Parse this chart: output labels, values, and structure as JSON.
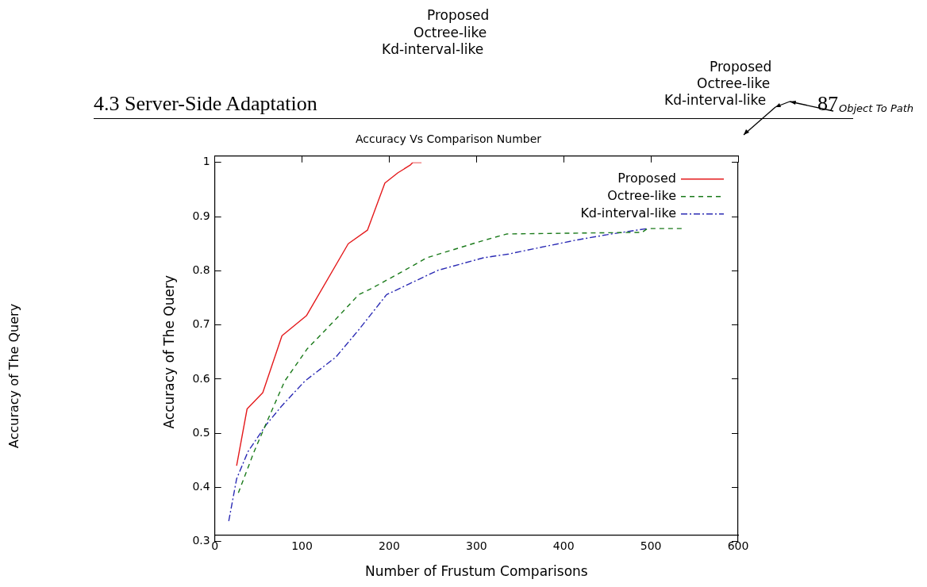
{
  "chart_data": {
    "type": "line",
    "title": "Accuracy Vs Comparison Number",
    "xlabel": "Number of Frustum Comparisons",
    "ylabel": "Accuracy of The Query",
    "xlim": [
      0,
      600
    ],
    "xticks": [
      0,
      100,
      200,
      300,
      400,
      500,
      600
    ],
    "ylim": [
      0.3,
      1
    ],
    "yticks": [
      0.3,
      0.4,
      0.5,
      0.6,
      0.7,
      0.8,
      0.9,
      1
    ],
    "grid": false,
    "legend": "top right",
    "marker": "none",
    "series": [
      {
        "name": "Proposed",
        "color": "#e41a1c",
        "line_style": "solid",
        "x": [
          25,
          37,
          55,
          77,
          105,
          153,
          175,
          195,
          210,
          224,
          227,
          237
        ],
        "values": [
          0.44,
          0.545,
          0.575,
          0.68,
          0.717,
          0.85,
          0.875,
          0.962,
          0.981,
          0.995,
          1,
          1
        ]
      },
      {
        "name": "Octree-like",
        "color": "#1a7a1a",
        "line_style": "dashed",
        "x": [
          27,
          45,
          61,
          80,
          106,
          136,
          165,
          178,
          210,
          243,
          308,
          335,
          490,
          496,
          537
        ],
        "values": [
          0.39,
          0.466,
          0.526,
          0.596,
          0.656,
          0.706,
          0.756,
          0.766,
          0.794,
          0.824,
          0.856,
          0.868,
          0.871,
          0.878,
          0.878
        ]
      },
      {
        "name": "Kd-interval-like",
        "color": "#2a2ab4",
        "line_style": "dashdot",
        "x": [
          16,
          25,
          38,
          59,
          77,
          103,
          139,
          165,
          197,
          223,
          256,
          308,
          337,
          412,
          451,
          496
        ],
        "values": [
          0.338,
          0.416,
          0.466,
          0.516,
          0.551,
          0.596,
          0.641,
          0.691,
          0.756,
          0.776,
          0.801,
          0.824,
          0.831,
          0.856,
          0.867,
          0.878
        ]
      }
    ],
    "annotations": [
      "Proposed",
      "Octree-like",
      "Kd-interval-like",
      "Proposed",
      "Octree-like",
      "Kd-interval-like",
      "4.3 Server-Side Adaptation",
      "87",
      "Object To Path",
      "Accuracy of The Query"
    ]
  }
}
